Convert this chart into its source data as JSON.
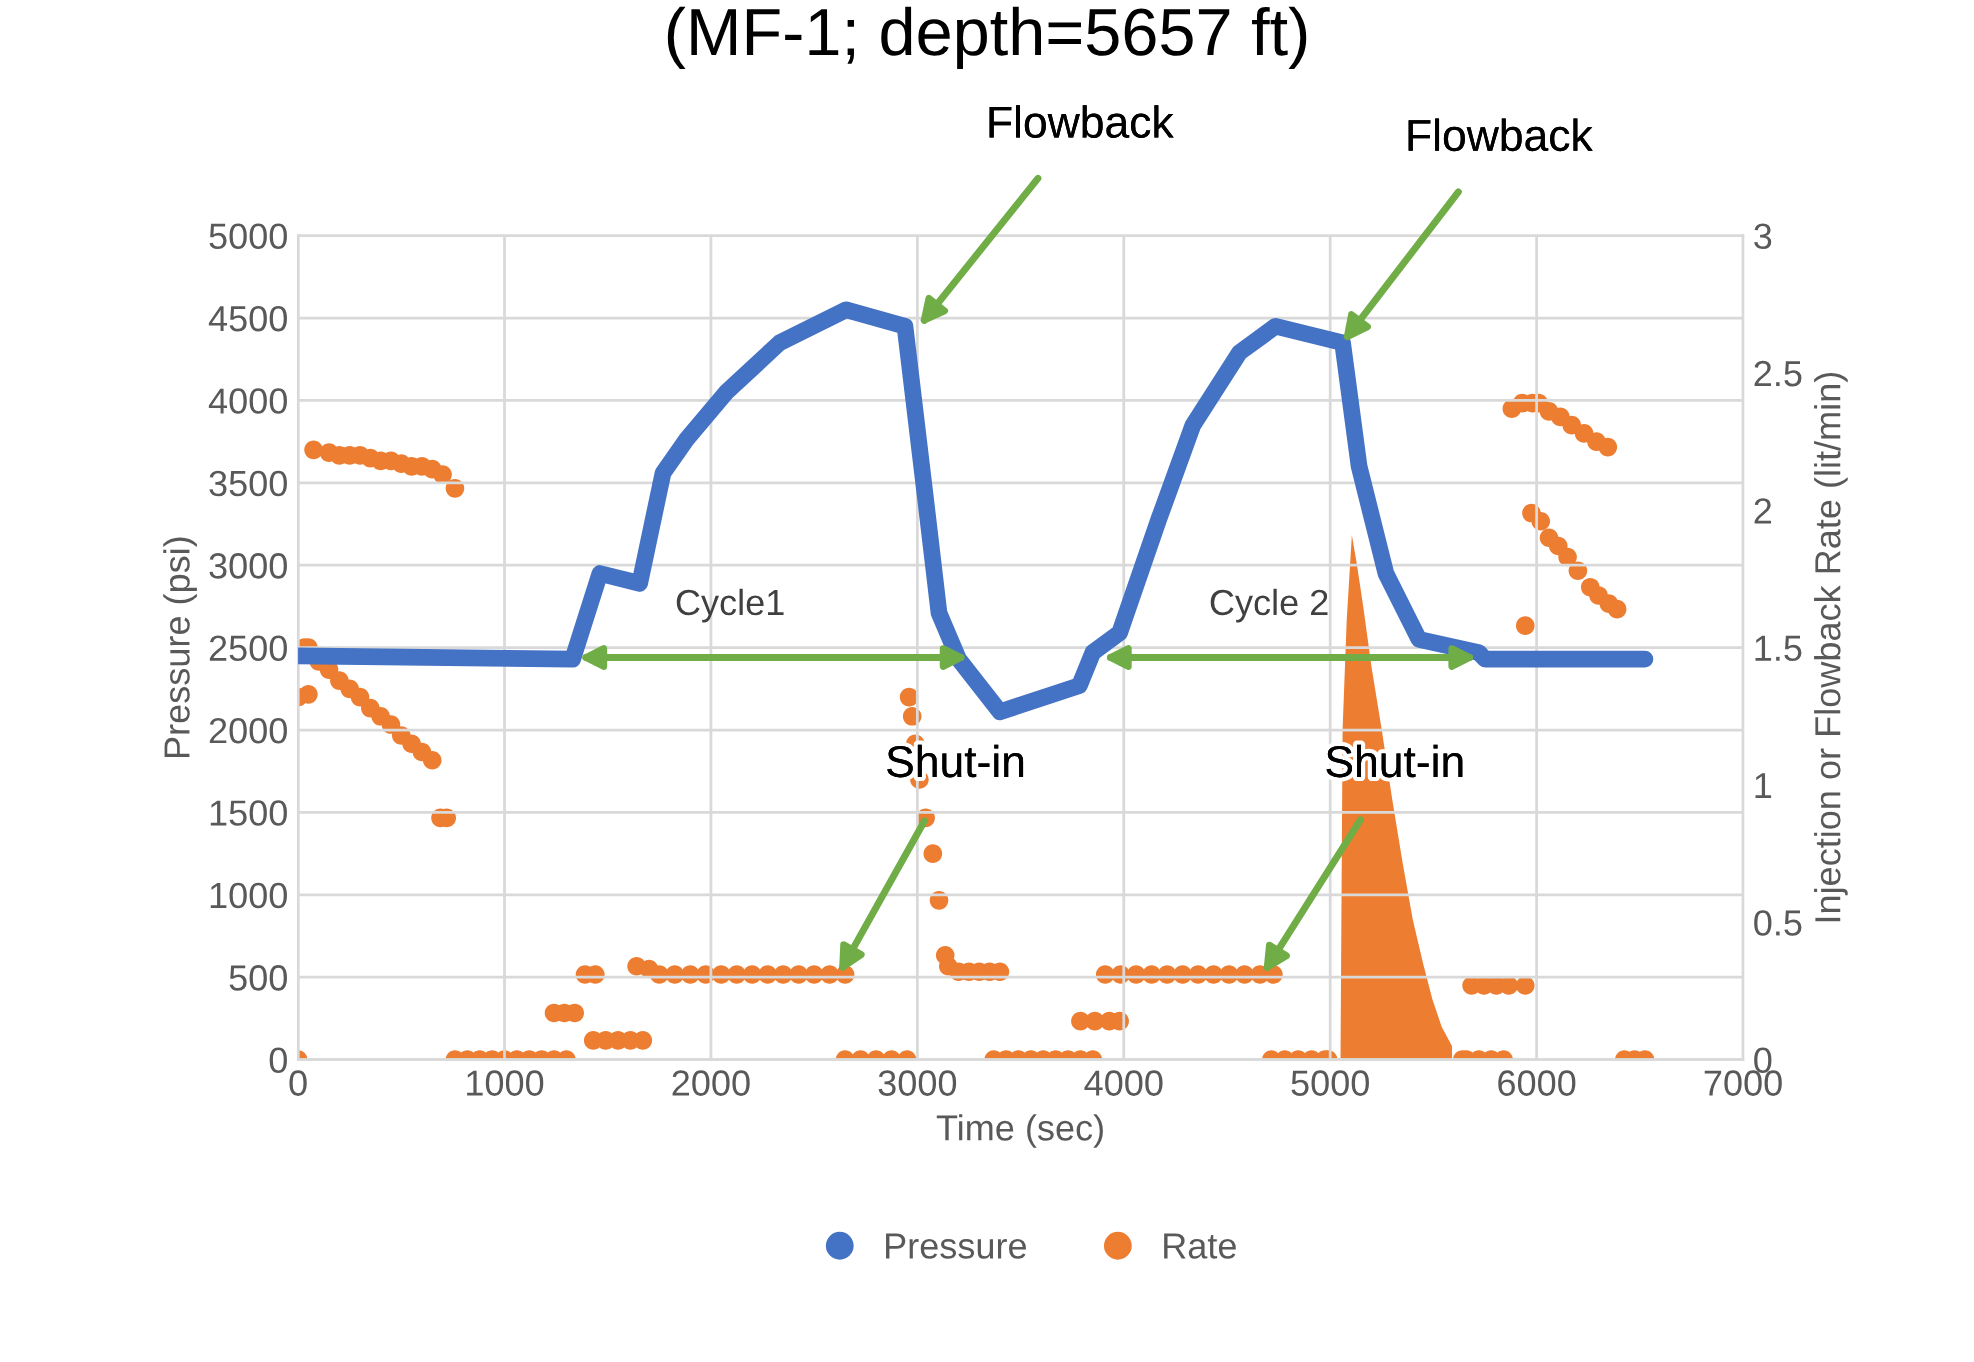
{
  "chart_data": {
    "type": "line",
    "title": "(MF-1; depth=5657 ft)",
    "xlabel": "Time (sec)",
    "ylabel": "Pressure (psi)",
    "y2label": "Injection or Flowback Rate (lit/min)",
    "xlim": [
      0,
      7000
    ],
    "xticks": [
      0,
      1000,
      2000,
      3000,
      4000,
      5000,
      6000,
      7000
    ],
    "ylim": [
      0,
      5000
    ],
    "yticks": [
      0,
      500,
      1000,
      1500,
      2000,
      2500,
      3000,
      3500,
      4000,
      4500,
      5000
    ],
    "y2lim": [
      0,
      3
    ],
    "y2ticks": [
      0,
      0.5,
      1,
      1.5,
      2,
      2.5,
      3
    ],
    "grid": true,
    "legend": "bottom",
    "series": [
      {
        "name": "Pressure",
        "color": "#4472c4",
        "x": [
          0,
          1330,
          1462,
          1655,
          1768,
          1880,
          2075,
          2333,
          2655,
          2940,
          3040,
          3105,
          3200,
          3400,
          3785,
          3850,
          3980,
          4170,
          4335,
          4560,
          4735,
          5060,
          5140,
          5270,
          5430,
          5720,
          5750,
          6525
        ],
        "values": [
          2450,
          2430,
          2950,
          2890,
          3560,
          3760,
          4050,
          4350,
          4550,
          4450,
          3400,
          2710,
          2430,
          2110,
          2270,
          2470,
          2590,
          3280,
          3850,
          4290,
          4450,
          4350,
          3600,
          2950,
          2550,
          2470,
          2430,
          2430
        ]
      },
      {
        "name": "Rate",
        "type": "scatter",
        "axis": "y2",
        "color": "#ed7d31",
        "x": [
          0,
          0,
          50,
          30,
          50,
          100,
          150,
          200,
          250,
          300,
          350,
          400,
          450,
          500,
          550,
          600,
          650,
          690,
          720,
          75,
          150,
          200,
          250,
          300,
          350,
          400,
          450,
          500,
          550,
          600,
          650,
          700,
          760,
          760,
          820,
          880,
          940,
          1000,
          1060,
          1120,
          1180,
          1240,
          1300,
          1240,
          1290,
          1340,
          1390,
          1440,
          1430,
          1490,
          1550,
          1610,
          1670,
          1640,
          1700,
          1750,
          1825,
          1900,
          1975,
          2050,
          2125,
          2200,
          2275,
          2350,
          2425,
          2500,
          2575,
          2650,
          2650,
          2725,
          2800,
          2875,
          2950,
          2960,
          2975,
          2990,
          3010,
          3040,
          3075,
          3105,
          3135,
          3150,
          3200,
          3250,
          3300,
          3350,
          3400,
          3370,
          3430,
          3490,
          3550,
          3610,
          3670,
          3730,
          3790,
          3850,
          3790,
          3860,
          3930,
          3980,
          3910,
          3985,
          4060,
          4135,
          4210,
          4285,
          4360,
          4435,
          4510,
          4585,
          4660,
          4725,
          4715,
          4780,
          4845,
          4910,
          4975,
          4990,
          5640,
          5660,
          5720,
          5780,
          5840,
          5685,
          5745,
          5805,
          5865,
          5945,
          5945,
          5880,
          5930,
          5980,
          6010,
          6060,
          6115,
          6170,
          6230,
          6290,
          6345,
          5975,
          6020,
          6060,
          6105,
          6150,
          6200,
          6260,
          6300,
          6350,
          6390,
          6425,
          6475,
          6525
        ],
        "values": [
          0,
          1.32,
          1.33,
          1.5,
          1.5,
          1.45,
          1.42,
          1.38,
          1.35,
          1.32,
          1.28,
          1.25,
          1.22,
          1.18,
          1.15,
          1.12,
          1.09,
          0.88,
          0.88,
          2.22,
          2.21,
          2.2,
          2.2,
          2.2,
          2.19,
          2.18,
          2.18,
          2.17,
          2.16,
          2.16,
          2.15,
          2.13,
          2.08,
          0,
          0,
          0,
          0,
          0,
          0,
          0,
          0,
          0,
          0,
          0.17,
          0.17,
          0.17,
          0.31,
          0.31,
          0.07,
          0.07,
          0.07,
          0.07,
          0.07,
          0.34,
          0.33,
          0.31,
          0.31,
          0.31,
          0.31,
          0.31,
          0.31,
          0.31,
          0.31,
          0.31,
          0.31,
          0.31,
          0.31,
          0.31,
          0,
          0,
          0,
          0,
          0,
          1.32,
          1.25,
          1.15,
          1.02,
          0.88,
          0.75,
          0.58,
          0.38,
          0.34,
          0.32,
          0.32,
          0.32,
          0.32,
          0.32,
          0,
          0,
          0,
          0,
          0,
          0,
          0,
          0,
          0,
          0.14,
          0.14,
          0.14,
          0.14,
          0.31,
          0.31,
          0.31,
          0.31,
          0.31,
          0.31,
          0.31,
          0.31,
          0.31,
          0.31,
          0.31,
          0.31,
          0,
          0,
          0,
          0,
          0,
          0,
          0,
          0,
          0,
          0,
          0,
          0.27,
          0.27,
          0.27,
          0.27,
          0.27,
          1.58,
          2.37,
          2.39,
          2.39,
          2.39,
          2.36,
          2.34,
          2.31,
          2.28,
          2.25,
          2.23,
          1.99,
          1.96,
          1.9,
          1.87,
          1.83,
          1.78,
          1.72,
          1.69,
          1.66,
          1.64,
          0,
          0,
          0
        ]
      },
      {
        "type": "area",
        "axis": "y2",
        "color": "#ed7d31",
        "x": [
          5050,
          5060,
          5080,
          5105,
          5130,
          5160,
          5200,
          5250,
          5300,
          5350,
          5400,
          5450,
          5495,
          5540,
          5590
        ],
        "values": [
          0,
          1.2,
          1.6,
          1.91,
          1.8,
          1.65,
          1.43,
          1.2,
          0.95,
          0.72,
          0.51,
          0.35,
          0.22,
          0.12,
          0.05
        ]
      }
    ],
    "annotations": [
      {
        "text": "Flowback",
        "x": 3010,
        "y": 4450
      },
      {
        "text": "Flowback",
        "x": 5060,
        "y": 4350
      },
      "Cycle1",
      "Cycle 2",
      {
        "text": "Shut-in",
        "x": 2620,
        "y": 520
      },
      {
        "text": "Shut-in",
        "x": 4675,
        "y": 520
      }
    ]
  }
}
